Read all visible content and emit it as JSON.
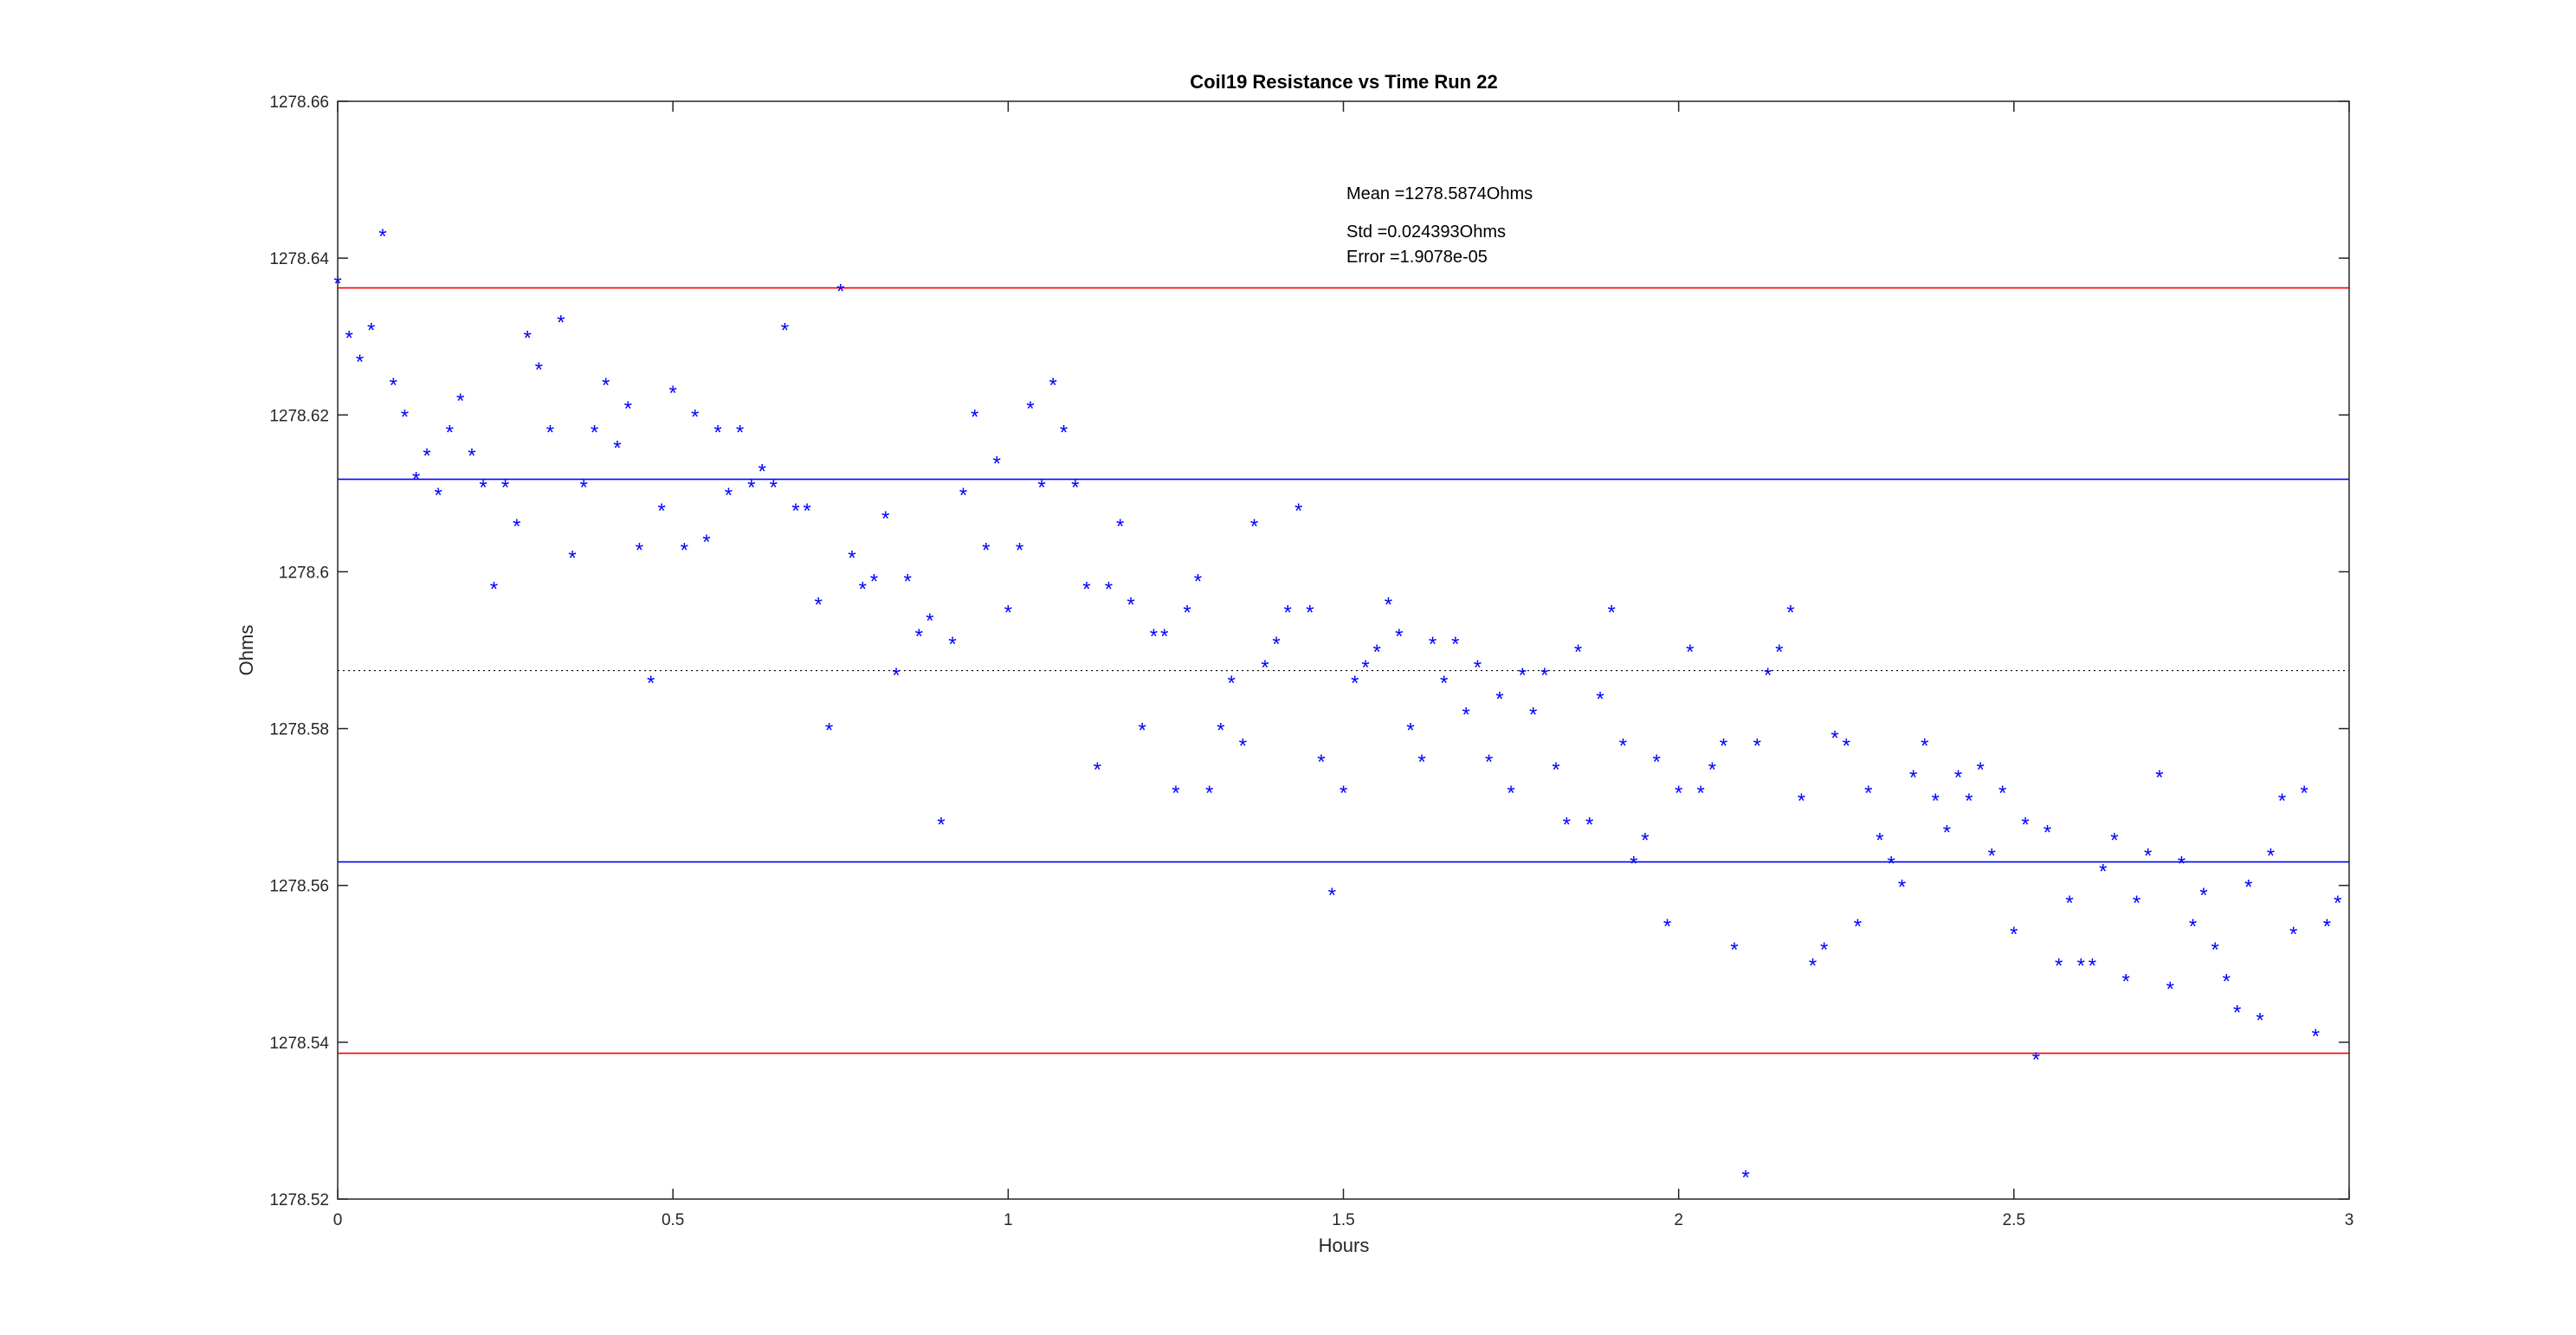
{
  "chart_data": {
    "type": "scatter",
    "title": "Coil19 Resistance vs Time Run 22",
    "xlabel": "Hours",
    "ylabel": "Ohms",
    "xlim": [
      0,
      3
    ],
    "ylim": [
      1278.52,
      1278.66
    ],
    "xticks": [
      "0",
      "0.5",
      "1",
      "1.5",
      "2",
      "2.5",
      "3"
    ],
    "yticks": [
      "1278.52",
      "1278.54",
      "1278.56",
      "1278.58",
      "1278.6",
      "1278.62",
      "1278.64",
      "1278.66"
    ],
    "grid": false,
    "marker": "*",
    "marker_color": "#0000ff",
    "annotations": [
      "Mean =1278.5874Ohms",
      "Std =0.024393Ohms",
      "Error =1.9078e-05"
    ],
    "reference_lines": [
      {
        "y": 1278.5874,
        "color": "#000000",
        "style": "dotted"
      },
      {
        "y": 1278.6118,
        "color": "#0000ff",
        "style": "solid"
      },
      {
        "y": 1278.563,
        "color": "#0000ff",
        "style": "solid"
      },
      {
        "y": 1278.6362,
        "color": "#ff0000",
        "style": "solid"
      },
      {
        "y": 1278.5386,
        "color": "#ff0000",
        "style": "solid"
      }
    ],
    "series": [
      {
        "x": [
          0.0,
          0.017,
          0.033,
          0.05,
          0.067,
          0.083,
          0.1,
          0.117,
          0.133,
          0.15,
          0.167,
          0.183,
          0.2,
          0.217,
          0.233,
          0.25,
          0.267,
          0.283,
          0.3,
          0.317,
          0.333,
          0.35,
          0.367,
          0.383,
          0.4,
          0.417,
          0.433,
          0.45,
          0.467,
          0.483,
          0.5,
          0.517,
          0.533,
          0.55,
          0.567,
          0.583,
          0.6,
          0.617,
          0.633,
          0.65,
          0.667,
          0.683,
          0.7,
          0.717,
          0.733,
          0.75,
          0.767,
          0.783,
          0.8,
          0.817,
          0.833,
          0.85,
          0.867,
          0.883,
          0.9,
          0.917,
          0.933,
          0.95,
          0.967,
          0.983,
          1.0,
          1.017,
          1.033,
          1.05,
          1.067,
          1.083,
          1.1,
          1.117,
          1.133,
          1.15,
          1.167,
          1.183,
          1.2,
          1.217,
          1.233,
          1.25,
          1.267,
          1.283,
          1.3,
          1.317,
          1.333,
          1.35,
          1.367,
          1.383,
          1.4,
          1.417,
          1.433,
          1.45,
          1.467,
          1.483,
          1.5,
          1.517,
          1.533,
          1.55,
          1.567,
          1.583,
          1.6,
          1.617,
          1.633,
          1.65,
          1.667,
          1.683,
          1.7,
          1.717,
          1.733,
          1.75,
          1.767,
          1.783,
          1.8,
          1.817,
          1.833,
          1.85,
          1.867,
          1.883,
          1.9,
          1.917,
          1.933,
          1.95,
          1.967,
          1.983,
          2.0,
          2.017,
          2.033,
          2.05,
          2.067,
          2.083,
          2.1,
          2.117,
          2.133,
          2.15,
          2.167,
          2.183,
          2.2,
          2.217,
          2.233,
          2.25,
          2.267,
          2.283,
          2.3,
          2.317,
          2.333,
          2.35,
          2.367,
          2.383,
          2.4,
          2.417,
          2.433,
          2.45,
          2.467,
          2.483,
          2.5,
          2.517,
          2.533,
          2.55,
          2.567,
          2.583,
          2.6,
          2.617,
          2.633,
          2.65,
          2.667,
          2.683,
          2.7,
          2.717,
          2.733,
          2.75,
          2.767,
          2.783,
          2.8,
          2.817,
          2.833,
          2.85,
          2.867,
          2.883,
          2.9,
          2.917,
          2.933,
          2.95,
          2.967,
          2.983
        ],
        "y": [
          1278.637,
          1278.63,
          1278.627,
          1278.631,
          1278.643,
          1278.624,
          1278.62,
          1278.612,
          1278.615,
          1278.61,
          1278.618,
          1278.622,
          1278.615,
          1278.611,
          1278.598,
          1278.611,
          1278.606,
          1278.63,
          1278.626,
          1278.618,
          1278.632,
          1278.602,
          1278.611,
          1278.618,
          1278.624,
          1278.616,
          1278.621,
          1278.603,
          1278.586,
          1278.608,
          1278.623,
          1278.603,
          1278.62,
          1278.604,
          1278.618,
          1278.61,
          1278.618,
          1278.611,
          1278.613,
          1278.611,
          1278.631,
          1278.608,
          1278.608,
          1278.596,
          1278.58,
          1278.636,
          1278.602,
          1278.598,
          1278.599,
          1278.607,
          1278.587,
          1278.599,
          1278.592,
          1278.594,
          1278.568,
          1278.591,
          1278.61,
          1278.62,
          1278.603,
          1278.614,
          1278.595,
          1278.603,
          1278.621,
          1278.611,
          1278.624,
          1278.618,
          1278.611,
          1278.598,
          1278.575,
          1278.598,
          1278.606,
          1278.596,
          1278.58,
          1278.592,
          1278.592,
          1278.572,
          1278.595,
          1278.599,
          1278.572,
          1278.58,
          1278.586,
          1278.578,
          1278.606,
          1278.588,
          1278.591,
          1278.595,
          1278.608,
          1278.595,
          1278.576,
          1278.559,
          1278.572,
          1278.586,
          1278.588,
          1278.59,
          1278.596,
          1278.592,
          1278.58,
          1278.576,
          1278.591,
          1278.586,
          1278.591,
          1278.582,
          1278.588,
          1278.576,
          1278.584,
          1278.572,
          1278.587,
          1278.582,
          1278.587,
          1278.575,
          1278.568,
          1278.59,
          1278.568,
          1278.584,
          1278.595,
          1278.578,
          1278.563,
          1278.566,
          1278.576,
          1278.555,
          1278.572,
          1278.59,
          1278.572,
          1278.575,
          1278.578,
          1278.552,
          1278.523,
          1278.578,
          1278.587,
          1278.59,
          1278.595,
          1278.571,
          1278.55,
          1278.552,
          1278.579,
          1278.578,
          1278.555,
          1278.572,
          1278.566,
          1278.563,
          1278.56,
          1278.574,
          1278.578,
          1278.571,
          1278.567,
          1278.574,
          1278.571,
          1278.575,
          1278.564,
          1278.572,
          1278.554,
          1278.568,
          1278.538,
          1278.567,
          1278.55,
          1278.558,
          1278.55,
          1278.55,
          1278.562,
          1278.566,
          1278.548,
          1278.558,
          1278.564,
          1278.574,
          1278.547,
          1278.563,
          1278.555,
          1278.559,
          1278.552,
          1278.548,
          1278.544,
          1278.56,
          1278.543,
          1278.564,
          1278.571,
          1278.554,
          1278.572,
          1278.541,
          1278.555,
          1278.558
        ]
      }
    ]
  }
}
